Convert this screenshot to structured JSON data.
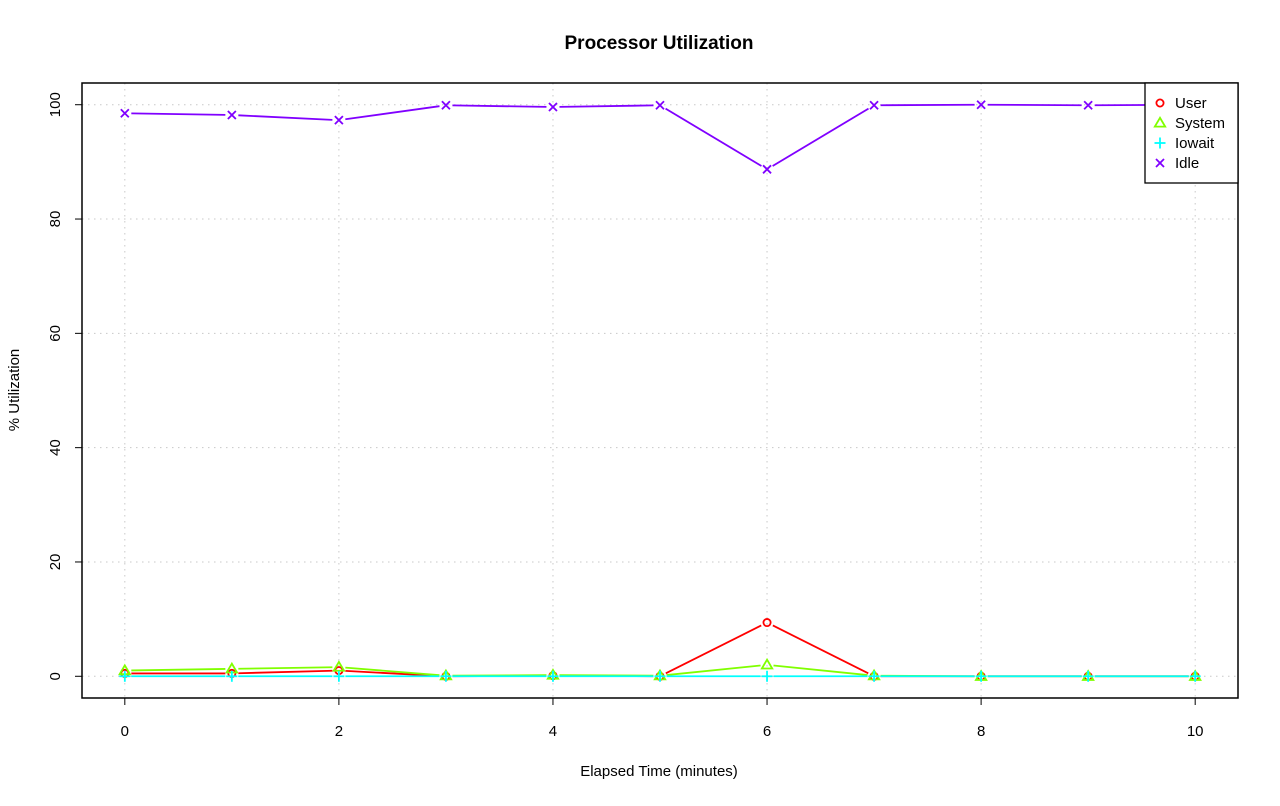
{
  "chart_data": {
    "type": "line",
    "title": "Processor Utilization",
    "xlabel": "Elapsed Time (minutes)",
    "ylabel": "% Utilization",
    "xlim": [
      -0.4,
      10.4
    ],
    "ylim": [
      -3.8,
      103.8
    ],
    "xticks": [
      0,
      2,
      4,
      6,
      8,
      10
    ],
    "yticks": [
      0,
      20,
      40,
      60,
      80,
      100
    ],
    "grid": true,
    "legend_position": "top-right",
    "x": [
      0,
      1,
      2,
      3,
      4,
      5,
      6,
      7,
      8,
      9,
      10
    ],
    "series": [
      {
        "name": "User",
        "color": "#ff0000",
        "marker": "circle",
        "values": [
          0.5,
          0.5,
          1.0,
          0.0,
          0.1,
          0.0,
          9.4,
          0.0,
          0.0,
          0.0,
          0.0
        ]
      },
      {
        "name": "System",
        "color": "#80ff00",
        "marker": "triangle",
        "values": [
          1.0,
          1.3,
          1.6,
          0.1,
          0.2,
          0.1,
          2.0,
          0.1,
          0.0,
          0.0,
          0.0
        ]
      },
      {
        "name": "Iowait",
        "color": "#00ffff",
        "marker": "plus",
        "values": [
          0.0,
          0.0,
          0.0,
          0.0,
          0.0,
          0.0,
          0.0,
          0.0,
          0.0,
          0.0,
          0.0
        ]
      },
      {
        "name": "Idle",
        "color": "#8000ff",
        "marker": "x",
        "values": [
          98.5,
          98.2,
          97.3,
          99.9,
          99.6,
          99.9,
          88.7,
          99.9,
          100.0,
          99.9,
          100.0
        ]
      }
    ]
  }
}
